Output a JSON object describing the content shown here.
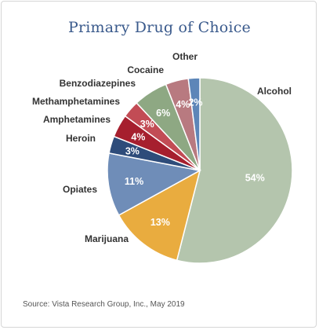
{
  "chart_data": {
    "type": "pie",
    "title": "Primary Drug of Choice",
    "categories": [
      "Alcohol",
      "Marijuana",
      "Opiates",
      "Heroin",
      "Amphetamines",
      "Methamphetamines",
      "Benzodiazepines",
      "Cocaine",
      "Other"
    ],
    "values": [
      54,
      13,
      11,
      3,
      4,
      3,
      6,
      4,
      2
    ],
    "value_labels": [
      "54%",
      "13%",
      "11%",
      "3%",
      "4%",
      "3%",
      "6%",
      "4%",
      "2%"
    ],
    "colors": [
      "#b4c5ad",
      "#e9ac3f",
      "#6f8db8",
      "#2e4c7a",
      "#a61f2e",
      "#c24c55",
      "#8ea883",
      "#b87a80",
      "#5d86b8"
    ],
    "legend": "none",
    "labels_placement": "outside"
  },
  "source": "Source: Vista Research Group, Inc., May 2019"
}
